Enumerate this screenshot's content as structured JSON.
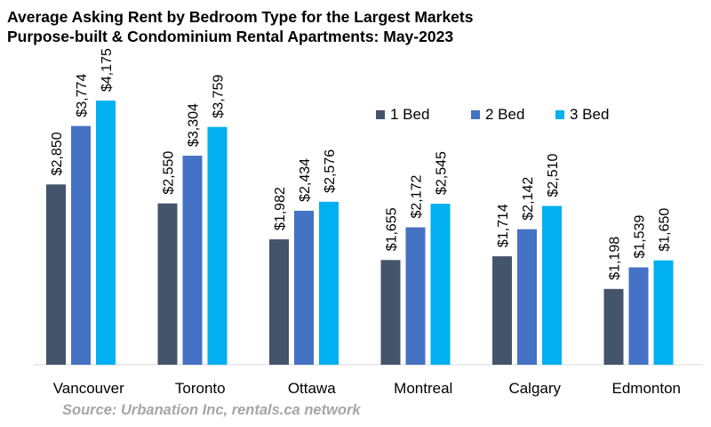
{
  "chart_data": {
    "type": "bar",
    "title": "Average Asking Rent by Bedroom Type for the Largest Markets",
    "subtitle": "Purpose-built & Condominium Rental Apartments: May-2023",
    "categories": [
      "Vancouver",
      "Toronto",
      "Ottawa",
      "Montreal",
      "Calgary",
      "Edmonton"
    ],
    "series": [
      {
        "name": "1 Bed",
        "color": "#44546a",
        "values": [
          2850,
          2550,
          1982,
          1655,
          1714,
          1198
        ],
        "labels": [
          "$2,850",
          "$2,550",
          "$1,982",
          "$1,655",
          "$1,714",
          "$1,198"
        ]
      },
      {
        "name": "2 Bed",
        "color": "#4472c4",
        "values": [
          3774,
          3304,
          2434,
          2172,
          2142,
          1539
        ],
        "labels": [
          "$3,774",
          "$3,304",
          "$2,434",
          "$2,172",
          "$2,142",
          "$1,539"
        ]
      },
      {
        "name": "3 Bed",
        "color": "#00b0f0",
        "values": [
          4175,
          3759,
          2576,
          2545,
          2510,
          1650
        ],
        "labels": [
          "$4,175",
          "$3,759",
          "$2,576",
          "$2,545",
          "$2,510",
          "$1,650"
        ]
      }
    ],
    "ylim": [
      0,
      4500
    ],
    "grid": false,
    "legend": "top-right",
    "source": "Source: Urbanation Inc, rentals.ca network"
  }
}
